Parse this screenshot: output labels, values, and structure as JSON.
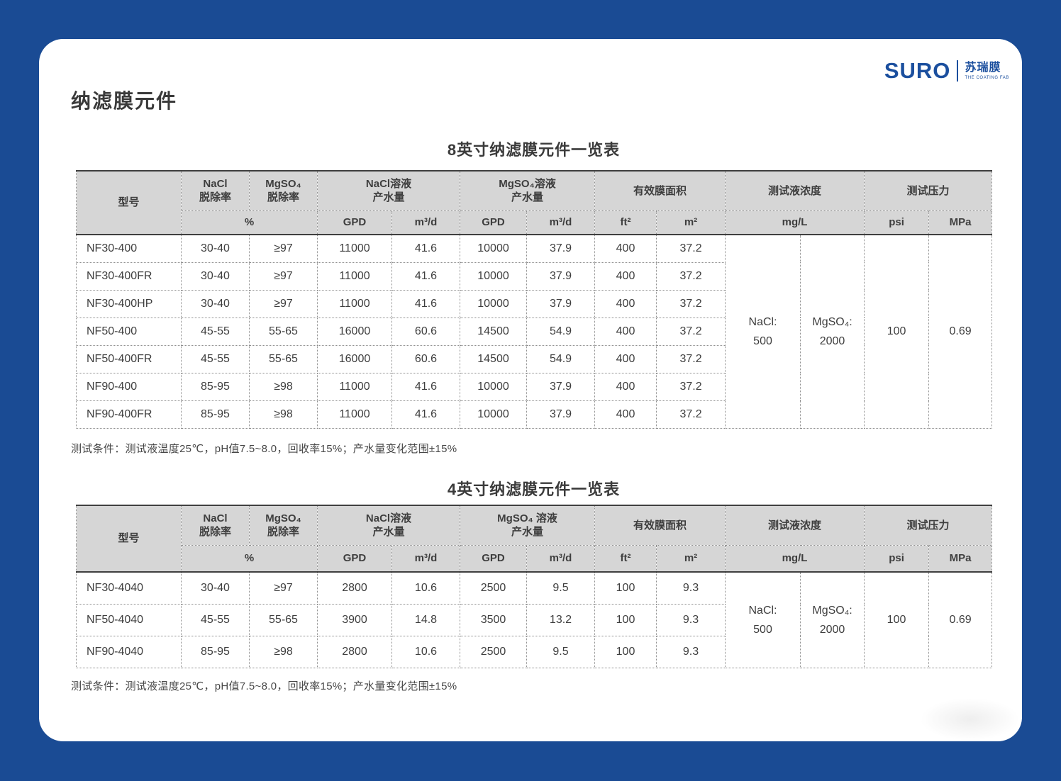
{
  "page": {
    "title": "纳滤膜元件",
    "frame_color": "#1a4b94",
    "card_color": "#ffffff",
    "table_header_bg": "#d6d6d6"
  },
  "logo": {
    "brand": "SURO",
    "cn_name": "苏瑞膜",
    "tagline": "THE COATING FAB",
    "color": "#1b4f9e"
  },
  "tables": [
    {
      "title": "8英寸纳滤膜元件一览表",
      "header": {
        "model": "型号",
        "nacl_rejection": "NaCl\n脱除率",
        "mgso4_rejection": "MgSO₄\n脱除率",
        "nacl_flow": "NaCl溶液\n产水量",
        "mgso4_flow": "MgSO₄溶液\n产水量",
        "membrane_area": "有效膜面积",
        "test_concentration": "测试液浓度",
        "test_pressure": "测试压力",
        "percent": "%",
        "gpd": "GPD",
        "m3d": "m³/d",
        "ft2": "ft²",
        "m2": "m²",
        "mgl": "mg/L",
        "psi": "psi",
        "mpa": "MPa"
      },
      "rows": [
        [
          "NF30-400",
          "30-40",
          "≥97",
          "11000",
          "41.6",
          "10000",
          "37.9",
          "400",
          "37.2"
        ],
        [
          "NF30-400FR",
          "30-40",
          "≥97",
          "11000",
          "41.6",
          "10000",
          "37.9",
          "400",
          "37.2"
        ],
        [
          "NF30-400HP",
          "30-40",
          "≥97",
          "11000",
          "41.6",
          "10000",
          "37.9",
          "400",
          "37.2"
        ],
        [
          "NF50-400",
          "45-55",
          "55-65",
          "16000",
          "60.6",
          "14500",
          "54.9",
          "400",
          "37.2"
        ],
        [
          "NF50-400FR",
          "45-55",
          "55-65",
          "16000",
          "60.6",
          "14500",
          "54.9",
          "400",
          "37.2"
        ],
        [
          "NF90-400",
          "85-95",
          "≥98",
          "11000",
          "41.6",
          "10000",
          "37.9",
          "400",
          "37.2"
        ],
        [
          "NF90-400FR",
          "85-95",
          "≥98",
          "11000",
          "41.6",
          "10000",
          "37.9",
          "400",
          "37.2"
        ]
      ],
      "merged": {
        "nacl_conc": "NaCl:\n500",
        "mgso4_conc": "MgSO₄:\n2000",
        "psi": "100",
        "mpa": "0.69"
      },
      "footnote": "测试条件：测试液温度25℃，pH值7.5~8.0，回收率15%；产水量变化范围±15%"
    },
    {
      "title": "4英寸纳滤膜元件一览表",
      "header": {
        "model": "型号",
        "nacl_rejection": "NaCl\n脱除率",
        "mgso4_rejection": "MgSO₄\n脱除率",
        "nacl_flow": "NaCl溶液\n产水量",
        "mgso4_flow": "MgSO₄ 溶液\n产水量",
        "membrane_area": "有效膜面积",
        "test_concentration": "测试液浓度",
        "test_pressure": "测试压力",
        "percent": "%",
        "gpd": "GPD",
        "m3d": "m³/d",
        "ft2": "ft²",
        "m2": "m²",
        "mgl": "mg/L",
        "psi": "psi",
        "mpa": "MPa"
      },
      "rows": [
        [
          "NF30-4040",
          "30-40",
          "≥97",
          "2800",
          "10.6",
          "2500",
          "9.5",
          "100",
          "9.3"
        ],
        [
          "NF50-4040",
          "45-55",
          "55-65",
          "3900",
          "14.8",
          "3500",
          "13.2",
          "100",
          "9.3"
        ],
        [
          "NF90-4040",
          "85-95",
          "≥98",
          "2800",
          "10.6",
          "2500",
          "9.5",
          "100",
          "9.3"
        ]
      ],
      "merged": {
        "nacl_conc": "NaCl:\n500",
        "mgso4_conc": "MgSO₄:\n2000",
        "psi": "100",
        "mpa": "0.69"
      },
      "footnote": "测试条件：测试液温度25℃，pH值7.5~8.0，回收率15%；产水量变化范围±15%"
    }
  ]
}
